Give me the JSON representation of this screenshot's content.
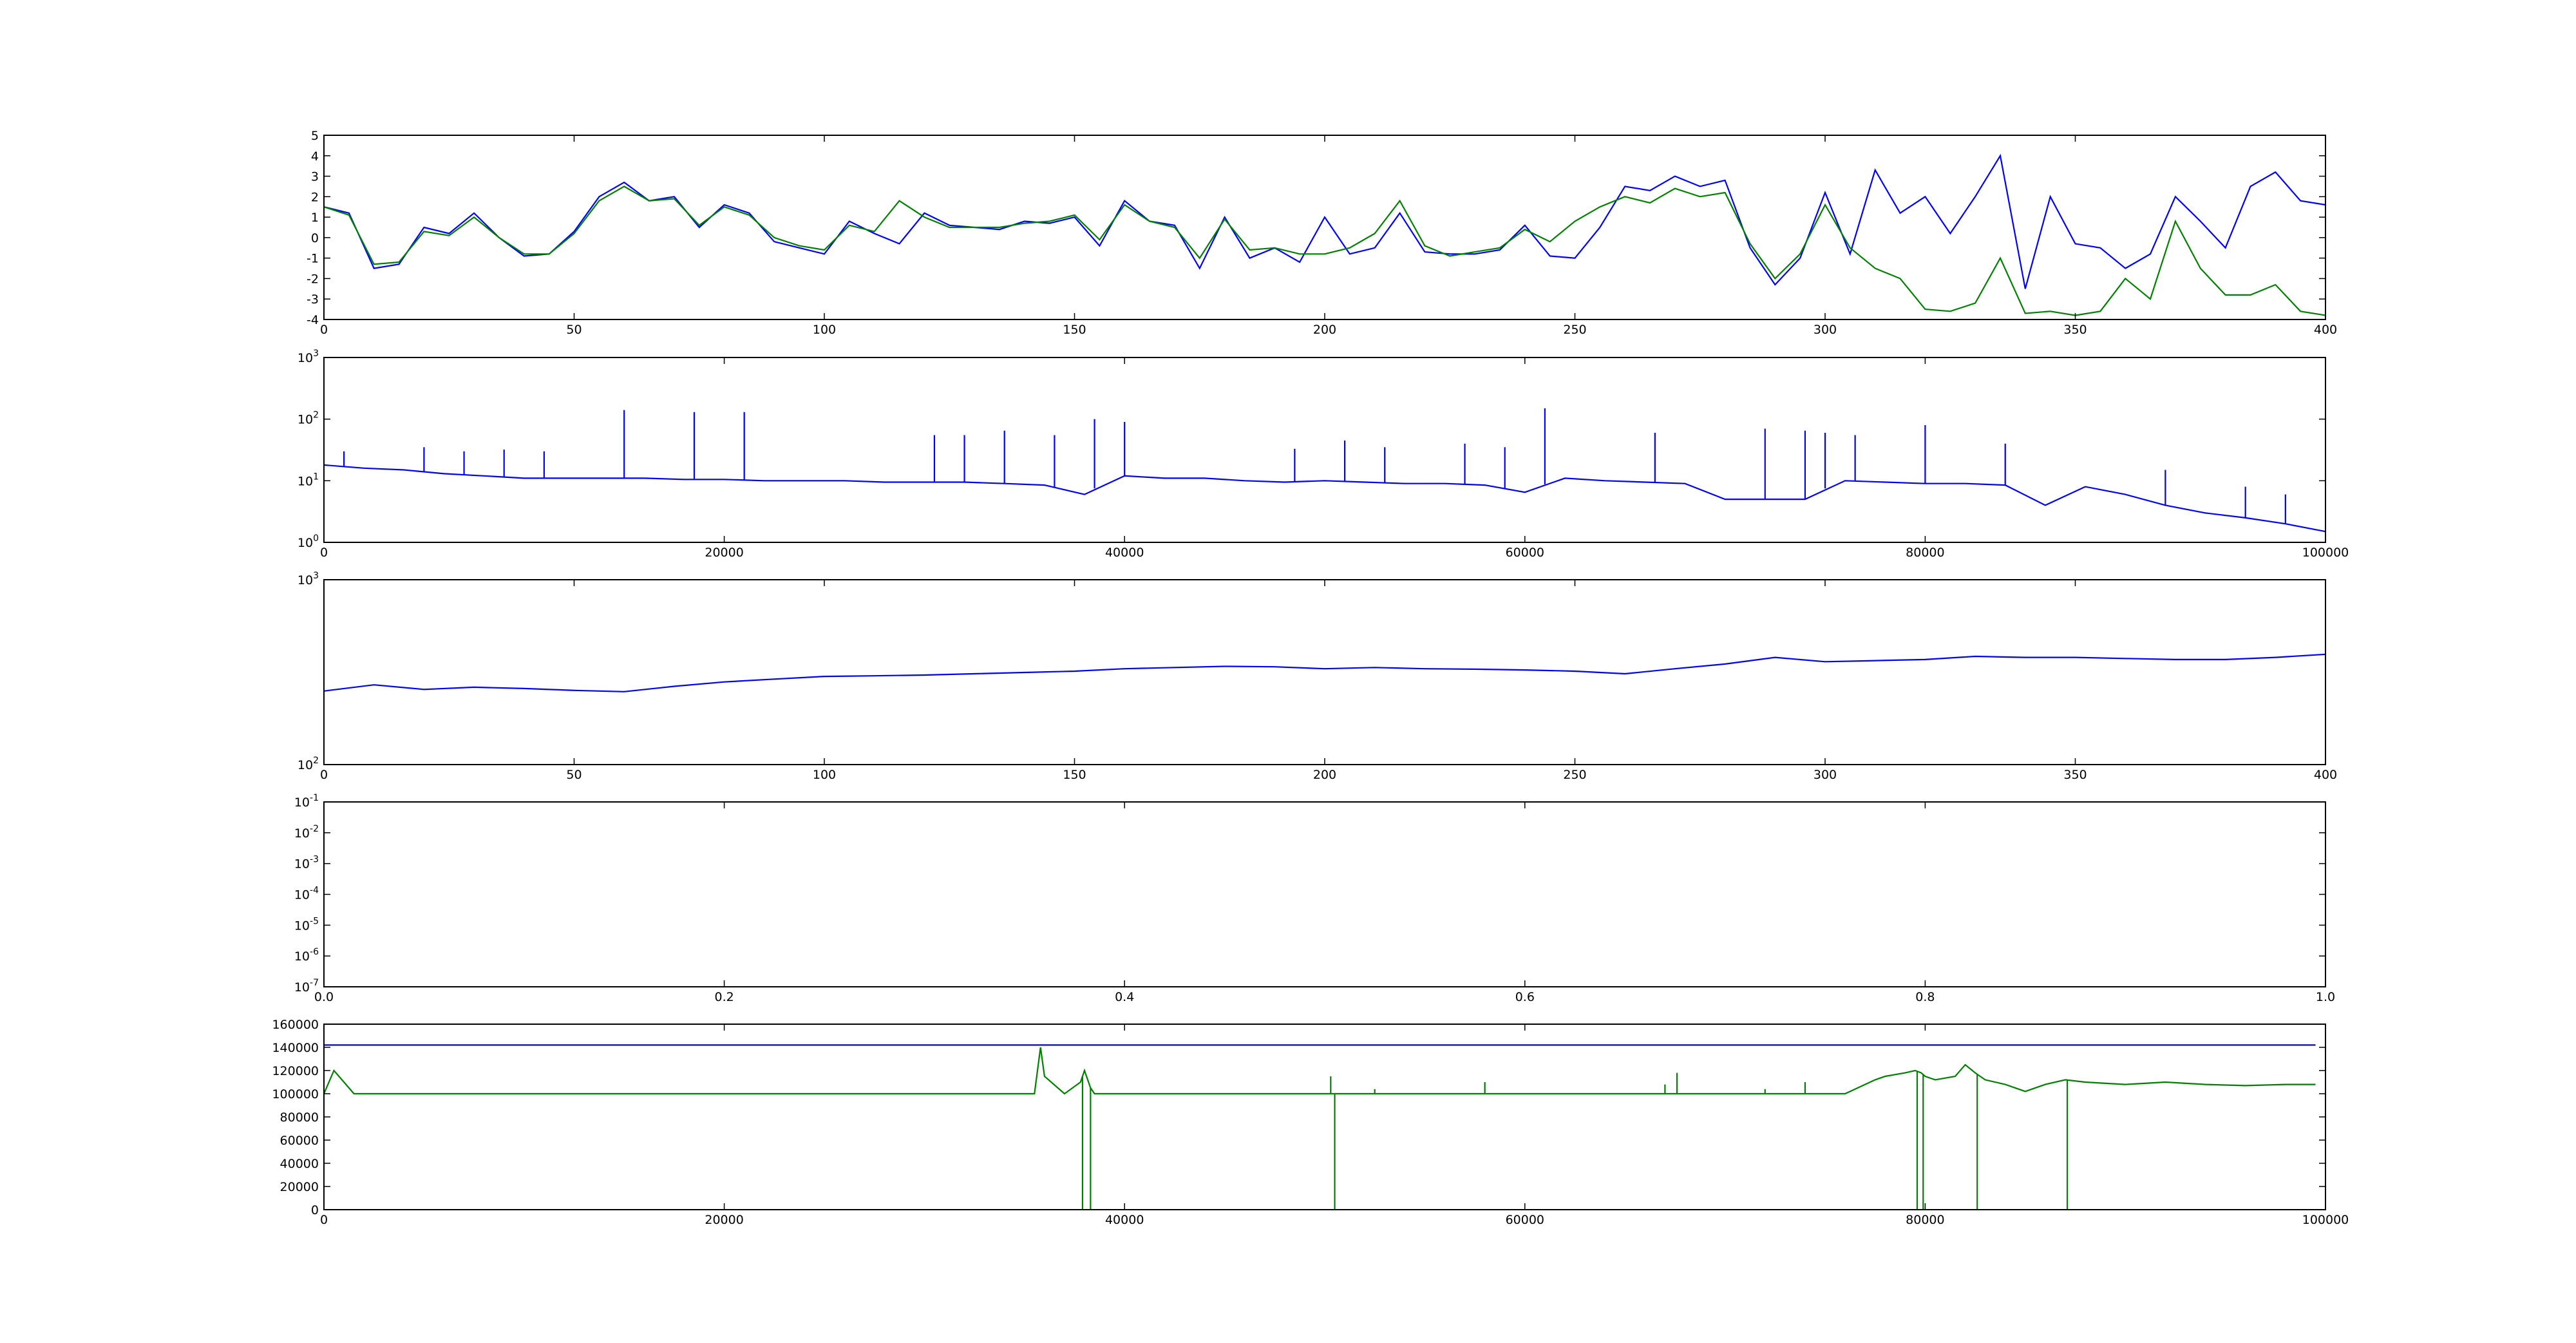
{
  "chart_data": [
    {
      "type": "line",
      "xlim": [
        0,
        400
      ],
      "ylim": [
        -4,
        5
      ],
      "xticks": [
        0,
        50,
        100,
        150,
        200,
        250,
        300,
        350,
        400
      ],
      "yticks": [
        -4,
        -3,
        -2,
        -1,
        0,
        1,
        2,
        3,
        4,
        5
      ],
      "grid": false,
      "series": [
        {
          "color": "#0000ff",
          "x": [
            0,
            5,
            10,
            15,
            20,
            25,
            30,
            35,
            40,
            45,
            50,
            55,
            60,
            65,
            70,
            75,
            80,
            85,
            90,
            95,
            100,
            105,
            110,
            115,
            120,
            125,
            130,
            135,
            140,
            145,
            150,
            155,
            160,
            165,
            170,
            175,
            180,
            185,
            190,
            195,
            200,
            205,
            210,
            215,
            220,
            225,
            230,
            235,
            240,
            245,
            250,
            255,
            260,
            265,
            270,
            275,
            280,
            285,
            290,
            295,
            300,
            305,
            310,
            315,
            320,
            325,
            330,
            335,
            340,
            345,
            350,
            355,
            360,
            365,
            370,
            375,
            380,
            385,
            390,
            395,
            400
          ],
          "y": [
            1.5,
            1.2,
            -1.5,
            -1.3,
            0.5,
            0.2,
            1.2,
            0.0,
            -0.9,
            -0.8,
            0.3,
            2.0,
            2.7,
            1.8,
            2.0,
            0.5,
            1.6,
            1.2,
            -0.2,
            -0.5,
            -0.8,
            0.8,
            0.2,
            -0.3,
            1.2,
            0.6,
            0.5,
            0.4,
            0.8,
            0.7,
            1.0,
            -0.4,
            1.8,
            0.8,
            0.6,
            -1.5,
            1.0,
            -1.0,
            -0.5,
            -1.2,
            1.0,
            -0.8,
            -0.5,
            1.2,
            -0.7,
            -0.8,
            -0.8,
            -0.6,
            0.6,
            -0.9,
            -1.0,
            0.5,
            2.5,
            2.3,
            3.0,
            2.5,
            2.8,
            -0.5,
            -2.3,
            -1.0,
            2.2,
            -0.8,
            3.3,
            1.2,
            2.0,
            0.2,
            2.0,
            4.0,
            -2.5,
            2.0,
            -0.3,
            -0.5,
            -1.5,
            -0.8,
            2.0,
            0.8,
            -0.5,
            2.5,
            3.2,
            1.8,
            1.6
          ]
        },
        {
          "color": "#008000",
          "x": [
            0,
            5,
            10,
            15,
            20,
            25,
            30,
            35,
            40,
            45,
            50,
            55,
            60,
            65,
            70,
            75,
            80,
            85,
            90,
            95,
            100,
            105,
            110,
            115,
            120,
            125,
            130,
            135,
            140,
            145,
            150,
            155,
            160,
            165,
            170,
            175,
            180,
            185,
            190,
            195,
            200,
            205,
            210,
            215,
            220,
            225,
            230,
            235,
            240,
            245,
            250,
            255,
            260,
            265,
            270,
            275,
            280,
            285,
            290,
            295,
            300,
            305,
            310,
            315,
            320,
            325,
            330,
            335,
            340,
            345,
            350,
            355,
            360,
            365,
            370,
            375,
            380,
            385,
            390,
            395,
            400
          ],
          "y": [
            1.5,
            1.1,
            -1.3,
            -1.2,
            0.3,
            0.1,
            1.0,
            0.0,
            -0.8,
            -0.8,
            0.2,
            1.8,
            2.5,
            1.8,
            1.9,
            0.6,
            1.5,
            1.1,
            0.0,
            -0.4,
            -0.6,
            0.6,
            0.3,
            1.8,
            1.0,
            0.5,
            0.5,
            0.5,
            0.7,
            0.8,
            1.1,
            -0.1,
            1.6,
            0.8,
            0.5,
            -1.0,
            0.9,
            -0.6,
            -0.5,
            -0.8,
            -0.8,
            -0.5,
            0.2,
            1.8,
            -0.4,
            -0.9,
            -0.7,
            -0.5,
            0.4,
            -0.2,
            0.8,
            1.5,
            2.0,
            1.7,
            2.4,
            2.0,
            2.2,
            -0.3,
            -2.0,
            -0.8,
            1.6,
            -0.5,
            -1.5,
            -2.0,
            -3.5,
            -3.6,
            -3.2,
            -1.0,
            -3.7,
            -3.6,
            -3.8,
            -3.6,
            -2.0,
            -3.0,
            0.8,
            -1.5,
            -2.8,
            -2.8,
            -2.3,
            -3.6,
            -3.8
          ]
        }
      ]
    },
    {
      "type": "line",
      "yscale": "log",
      "xlim": [
        0,
        100000
      ],
      "ylim": [
        1,
        1000
      ],
      "xticks": [
        0,
        20000,
        40000,
        60000,
        80000,
        100000
      ],
      "yticks": [
        1,
        10,
        100,
        1000
      ],
      "ytick_labels": [
        "10^0",
        "10^1",
        "10^2",
        "10^3"
      ],
      "grid": false,
      "series": [
        {
          "color": "#0000ff",
          "x": [
            0,
            2000,
            4000,
            6000,
            8000,
            10000,
            12000,
            14000,
            16000,
            18000,
            20000,
            22000,
            24000,
            26000,
            28000,
            30000,
            32000,
            34000,
            36000,
            38000,
            40000,
            42000,
            44000,
            46000,
            48000,
            50000,
            52000,
            54000,
            56000,
            58000,
            60000,
            62000,
            64000,
            66000,
            68000,
            70000,
            72000,
            74000,
            76000,
            78000,
            80000,
            82000,
            84000,
            86000,
            88000,
            90000,
            92000,
            94000,
            96000,
            98000,
            100000
          ],
          "y": [
            18,
            16,
            15,
            13,
            12,
            11,
            11,
            11,
            11,
            10.5,
            10.5,
            10,
            10,
            10,
            9.5,
            9.5,
            9.5,
            9,
            8.5,
            6,
            12,
            11,
            11,
            10,
            9.5,
            10,
            9.5,
            9,
            9,
            8.5,
            6.5,
            11,
            10,
            9.5,
            9,
            5,
            5,
            5,
            10,
            9.5,
            9,
            9,
            8.5,
            4,
            8,
            6,
            4,
            3,
            2.5,
            2,
            1.5
          ],
          "spikes": [
            {
              "x": 1000,
              "y": 30
            },
            {
              "x": 5000,
              "y": 35
            },
            {
              "x": 7000,
              "y": 30
            },
            {
              "x": 9000,
              "y": 32
            },
            {
              "x": 11000,
              "y": 30
            },
            {
              "x": 15000,
              "y": 140
            },
            {
              "x": 18500,
              "y": 130
            },
            {
              "x": 21000,
              "y": 130
            },
            {
              "x": 30500,
              "y": 55
            },
            {
              "x": 32000,
              "y": 55
            },
            {
              "x": 34000,
              "y": 65
            },
            {
              "x": 36500,
              "y": 55
            },
            {
              "x": 38500,
              "y": 100
            },
            {
              "x": 40000,
              "y": 90
            },
            {
              "x": 48500,
              "y": 33
            },
            {
              "x": 51000,
              "y": 45
            },
            {
              "x": 53000,
              "y": 35
            },
            {
              "x": 57000,
              "y": 40
            },
            {
              "x": 59000,
              "y": 35
            },
            {
              "x": 61000,
              "y": 150
            },
            {
              "x": 66500,
              "y": 60
            },
            {
              "x": 72000,
              "y": 70
            },
            {
              "x": 74000,
              "y": 65
            },
            {
              "x": 75000,
              "y": 60
            },
            {
              "x": 76500,
              "y": 55
            },
            {
              "x": 80000,
              "y": 80
            },
            {
              "x": 84000,
              "y": 40
            },
            {
              "x": 92000,
              "y": 15
            },
            {
              "x": 96000,
              "y": 8
            },
            {
              "x": 98000,
              "y": 6
            }
          ]
        }
      ]
    },
    {
      "type": "line",
      "yscale": "log",
      "xlim": [
        0,
        400
      ],
      "ylim": [
        100,
        1000
      ],
      "xticks": [
        0,
        50,
        100,
        150,
        200,
        250,
        300,
        350,
        400
      ],
      "yticks": [
        100,
        1000
      ],
      "ytick_labels": [
        "10^2",
        "10^3"
      ],
      "grid": false,
      "series": [
        {
          "color": "#0000ff",
          "x": [
            0,
            10,
            20,
            30,
            40,
            50,
            60,
            70,
            80,
            90,
            100,
            110,
            120,
            130,
            140,
            150,
            160,
            170,
            180,
            190,
            200,
            210,
            220,
            230,
            240,
            250,
            260,
            270,
            280,
            290,
            300,
            310,
            320,
            330,
            340,
            350,
            360,
            370,
            380,
            390,
            400
          ],
          "y": [
            250,
            270,
            255,
            262,
            258,
            252,
            248,
            265,
            280,
            290,
            300,
            302,
            305,
            310,
            315,
            320,
            330,
            335,
            340,
            338,
            330,
            335,
            330,
            328,
            325,
            320,
            310,
            330,
            350,
            380,
            360,
            365,
            370,
            385,
            380,
            380,
            375,
            370,
            370,
            380,
            395
          ]
        }
      ]
    },
    {
      "type": "line",
      "yscale": "log",
      "xlim": [
        0,
        1
      ],
      "ylim": [
        1e-07,
        0.1
      ],
      "xticks": [
        0.0,
        0.2,
        0.4,
        0.6,
        0.8,
        1.0
      ],
      "xtick_labels": [
        "0.0",
        "0.2",
        "0.4",
        "0.6",
        "0.8",
        "1.0"
      ],
      "yticks": [
        1e-07,
        1e-06,
        1e-05,
        0.0001,
        0.001,
        0.01,
        0.1
      ],
      "ytick_labels": [
        "10^-7",
        "10^-6",
        "10^-5",
        "10^-4",
        "10^-3",
        "10^-2",
        "10^-1"
      ],
      "grid": false,
      "series": []
    },
    {
      "type": "line",
      "xlim": [
        0,
        100000
      ],
      "ylim": [
        0,
        160000
      ],
      "xticks": [
        0,
        20000,
        40000,
        60000,
        80000,
        100000
      ],
      "yticks": [
        0,
        20000,
        40000,
        60000,
        80000,
        100000,
        120000,
        140000,
        160000
      ],
      "grid": false,
      "series": [
        {
          "color": "#0000ff",
          "x": [
            0,
            99500
          ],
          "y": [
            142000,
            142000
          ]
        },
        {
          "color": "#008000",
          "x": [
            0,
            500,
            1000,
            1500,
            2000,
            6000,
            10000,
            15000,
            20000,
            25000,
            30000,
            34000,
            35500,
            35800,
            36000,
            37000,
            37800,
            38000,
            38300,
            38500,
            40000,
            45000,
            50200,
            50500,
            52000,
            55000,
            58000,
            60000,
            65000,
            70000,
            75000,
            76000,
            77500,
            78000,
            79000,
            79500,
            79800,
            80000,
            80500,
            81500,
            82000,
            82500,
            83000,
            84000,
            85000,
            86000,
            87000,
            88000,
            90000,
            92000,
            94000,
            96000,
            98000,
            99500
          ],
          "y": [
            100000,
            120000,
            110000,
            100000,
            100000,
            100000,
            100000,
            100000,
            100000,
            100000,
            100000,
            100000,
            100000,
            140000,
            115000,
            100000,
            110000,
            120000,
            105000,
            100000,
            100000,
            100000,
            100000,
            100000,
            100000,
            100000,
            100000,
            100000,
            100000,
            100000,
            100000,
            100000,
            112000,
            115000,
            118000,
            120000,
            118000,
            115000,
            112000,
            115000,
            125000,
            118000,
            112000,
            108000,
            102000,
            108000,
            112000,
            110000,
            108000,
            110000,
            108000,
            107000,
            108000,
            108000
          ],
          "drops": [
            {
              "x": 37900,
              "y": 0
            },
            {
              "x": 38300,
              "y": 0
            },
            {
              "x": 50500,
              "y": 0
            },
            {
              "x": 79600,
              "y": 0
            },
            {
              "x": 79900,
              "y": 0
            },
            {
              "x": 82600,
              "y": 0
            },
            {
              "x": 87100,
              "y": 0
            }
          ],
          "spikes": [
            {
              "x": 50300,
              "y": 115000
            },
            {
              "x": 52500,
              "y": 104000
            },
            {
              "x": 58000,
              "y": 110000
            },
            {
              "x": 67000,
              "y": 108000
            },
            {
              "x": 67600,
              "y": 118000
            },
            {
              "x": 72000,
              "y": 104000
            },
            {
              "x": 74000,
              "y": 110000
            }
          ]
        }
      ]
    }
  ]
}
